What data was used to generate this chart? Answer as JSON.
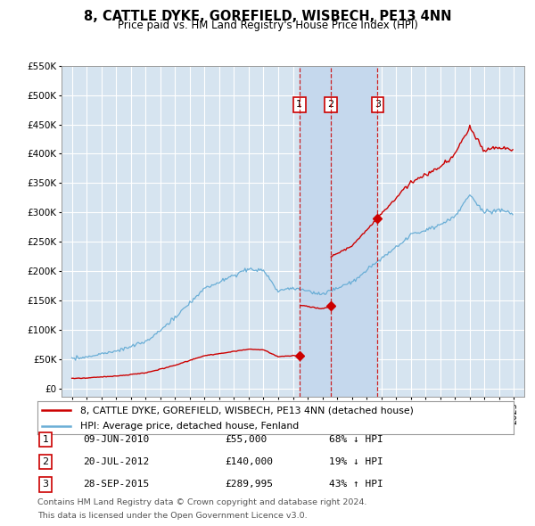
{
  "title": "8, CATTLE DYKE, GOREFIELD, WISBECH, PE13 4NN",
  "subtitle": "Price paid vs. HM Land Registry's House Price Index (HPI)",
  "background_color": "#ffffff",
  "plot_background": "#d6e4f0",
  "highlight_color": "#c5d8ed",
  "grid_color": "#ffffff",
  "transactions": [
    {
      "num": 1,
      "date_label": "09-JUN-2010",
      "price": 55000,
      "pct": "68%",
      "dir": "↓",
      "x_year": 2010.44
    },
    {
      "num": 2,
      "date_label": "20-JUL-2012",
      "price": 140000,
      "pct": "19%",
      "dir": "↓",
      "x_year": 2012.55
    },
    {
      "num": 3,
      "date_label": "28-SEP-2015",
      "price": 289995,
      "pct": "43%",
      "dir": "↑",
      "x_year": 2015.74
    }
  ],
  "legend_line1": "8, CATTLE DYKE, GOREFIELD, WISBECH, PE13 4NN (detached house)",
  "legend_line2": "HPI: Average price, detached house, Fenland",
  "footer1": "Contains HM Land Registry data © Crown copyright and database right 2024.",
  "footer2": "This data is licensed under the Open Government Licence v3.0.",
  "red_color": "#cc0000",
  "blue_color": "#6aaed6",
  "ylim_max": 550000,
  "ylim_min": -15000,
  "xlim_min": 1994.3,
  "xlim_max": 2025.7
}
